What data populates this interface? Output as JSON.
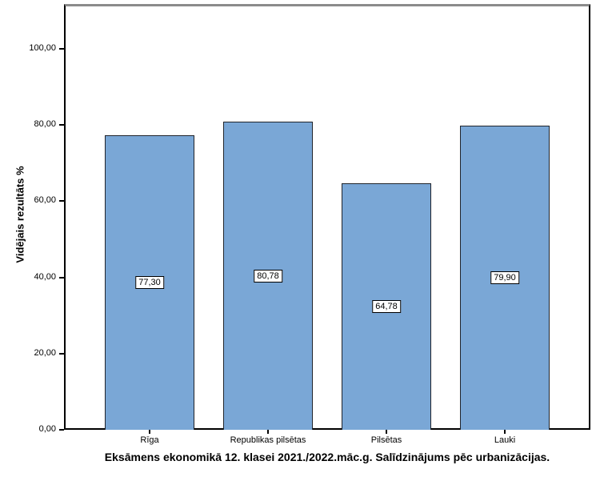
{
  "chart_data": {
    "type": "bar",
    "title": "Eksāmens ekonomikā 12. klasei 2021./2022.māc.g. Salīdzinājums pēc urbanizācijas.",
    "xlabel": "",
    "ylabel": "Vidējais rezultāts %",
    "categories": [
      "Rīga",
      "Republikas pilsētas",
      "Pilsētas",
      "Lauki"
    ],
    "values": [
      77.3,
      80.78,
      64.78,
      79.9
    ],
    "value_labels": [
      "77,30",
      "80,78",
      "64,78",
      "79,90"
    ],
    "ylim": [
      0,
      100
    ],
    "yticks": [
      0,
      20,
      40,
      60,
      80,
      100
    ],
    "ytick_labels": [
      "0,00",
      "20,00",
      "40,00",
      "60,00",
      "80,00",
      "100,00"
    ],
    "grid": false,
    "legend_position": "none",
    "bar_color": "#7aa7d6",
    "bar_border_color": "#20242b",
    "frame_top_color": "#8b8b8b",
    "axis_color": "#000000",
    "background_color": "#ffffff"
  }
}
